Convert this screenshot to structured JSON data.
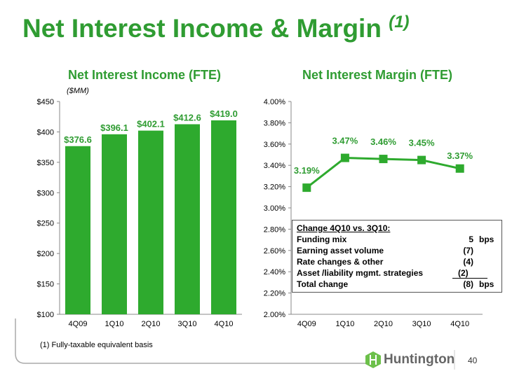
{
  "title": "Net Interest Income & Margin",
  "title_note": "(1)",
  "footnote": "(1)  Fully-taxable equivalent basis",
  "page_number": "40",
  "logo_text": "Huntington",
  "colors": {
    "green": "#2f9c32",
    "bar": "#2eaa2e"
  },
  "chart_data": [
    {
      "type": "bar",
      "title": "Net Interest Income (FTE)",
      "unit_label": "($MM)",
      "categories": [
        "4Q09",
        "1Q10",
        "2Q10",
        "3Q10",
        "4Q10"
      ],
      "values": [
        376.6,
        396.1,
        402.1,
        412.6,
        419.0
      ],
      "labels": [
        "$376.6",
        "$396.1",
        "$402.1",
        "$412.6",
        "$419.0"
      ],
      "ylim": [
        100,
        450
      ],
      "yticks": [
        "$100",
        "$150",
        "$200",
        "$250",
        "$300",
        "$350",
        "$400",
        "$450"
      ]
    },
    {
      "type": "line",
      "title": "Net Interest Margin (FTE)",
      "categories": [
        "4Q09",
        "1Q10",
        "2Q10",
        "3Q10",
        "4Q10"
      ],
      "values": [
        3.19,
        3.47,
        3.46,
        3.45,
        3.37
      ],
      "labels": [
        "3.19%",
        "3.47%",
        "3.46%",
        "3.45%",
        "3.37%"
      ],
      "ylim": [
        2.0,
        4.0
      ],
      "yticks": [
        "2.00%",
        "2.20%",
        "2.40%",
        "2.60%",
        "2.80%",
        "3.00%",
        "3.20%",
        "3.40%",
        "3.60%",
        "3.80%",
        "4.00%"
      ]
    }
  ],
  "change_box": {
    "header": "Change 4Q10  vs. 3Q10:",
    "rows": [
      {
        "label": "Funding mix",
        "value": "5",
        "unit": "bps"
      },
      {
        "label": "Earning asset volume",
        "value": "(7)",
        "unit": ""
      },
      {
        "label": "Rate changes & other",
        "value": "(4)",
        "unit": ""
      },
      {
        "label": "Asset /liability mgmt. strategies",
        "value": "(2)",
        "unit": ""
      },
      {
        "label": "Total change",
        "value": "(8)",
        "unit": "bps"
      }
    ]
  }
}
